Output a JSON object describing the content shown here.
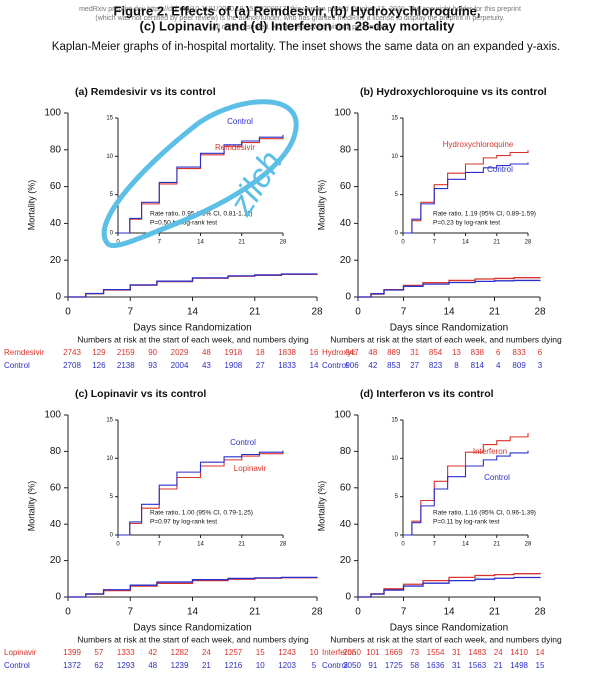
{
  "header": {
    "preprint_note": [
      "medRxiv preprint doi: https://doi.org/10.1101/2020.10.15.20209817; this version posted October 15, 2020. The copyright holder for this preprint",
      "(which was not certified by peer review) is the author/funder, who has granted medRxiv a license to display the preprint in perpetuity.",
      "All rights reserved. No reuse allowed without permission."
    ],
    "title": [
      "Figure 2. Effects of (a) Remdesivir, (b) Hydroxychloroquine,",
      "(c) Lopinavir, and (d) Interferon on 28-day mortality"
    ],
    "subtitle": "Kaplan-Meier graphs of in-hospital mortality. The inset shows the same data on an expanded y-axis."
  },
  "annotation": "zilch",
  "chart_data": [
    {
      "type": "line",
      "step": true,
      "title": "(a) Remdesivir vs its control",
      "xlabel": "Days since Randomization",
      "ylabel": "Mortality (%)",
      "x": [
        0,
        2,
        4,
        7,
        10,
        14,
        18,
        21,
        24,
        28
      ],
      "xlim": [
        0,
        28
      ],
      "xticks": [
        0,
        7,
        14,
        21,
        28
      ],
      "ylim": [
        0,
        100
      ],
      "yticks": [
        0,
        20,
        40,
        60,
        80,
        100
      ],
      "series": [
        {
          "name": "Remdesivir",
          "color": "#d9342b",
          "values": [
            0,
            1.8,
            3.8,
            6.4,
            8.4,
            10.2,
            11.3,
            11.8,
            12.3,
            12.6
          ]
        },
        {
          "name": "Control",
          "color": "#2b2fc9",
          "values": [
            0,
            1.9,
            4.0,
            6.6,
            8.6,
            10.4,
            11.5,
            12.0,
            12.5,
            12.8
          ]
        }
      ],
      "inset": {
        "ylim": [
          0,
          15
        ],
        "yticks": [
          0,
          5,
          10,
          15
        ],
        "xticks": [
          0,
          7,
          14,
          21,
          28
        ],
        "note": [
          "Rate ratio, 0.95 (95% CI, 0.81-1.11)",
          "P=0.50 by log-rank test"
        ]
      },
      "risk_table": {
        "title": "Numbers at risk at the start of each week, and numbers dying",
        "rows": [
          {
            "label": "Remdesivir",
            "values": [
              2743,
              129,
              2159,
              90,
              2029,
              48,
              1918,
              18,
              1838,
              16
            ]
          },
          {
            "label": "Control",
            "values": [
              2708,
              126,
              2138,
              93,
              2004,
              43,
              1908,
              27,
              1833,
              14
            ]
          }
        ]
      }
    },
    {
      "type": "line",
      "step": true,
      "title": "(b) Hydroxychloroquine vs its control",
      "xlabel": "Days since Randomization",
      "ylabel": "Mortality (%)",
      "x": [
        0,
        2,
        4,
        7,
        10,
        14,
        18,
        21,
        24,
        28
      ],
      "xlim": [
        0,
        28
      ],
      "xticks": [
        0,
        7,
        14,
        21,
        28
      ],
      "ylim": [
        0,
        100
      ],
      "yticks": [
        0,
        20,
        40,
        60,
        80,
        100
      ],
      "series": [
        {
          "name": "Hydroxychloroquine",
          "color": "#d9342b",
          "values": [
            0,
            1.6,
            4.0,
            6.3,
            7.8,
            9.0,
            9.8,
            10.1,
            10.5,
            10.8
          ]
        },
        {
          "name": "Control",
          "color": "#2b2fc9",
          "values": [
            0,
            1.8,
            3.8,
            5.8,
            7.0,
            7.9,
            8.5,
            8.8,
            9.0,
            9.2
          ]
        }
      ],
      "inset": {
        "ylim": [
          0,
          15
        ],
        "yticks": [
          0,
          5,
          10,
          15
        ],
        "xticks": [
          0,
          7,
          14,
          21,
          28
        ],
        "note": [
          "Rate ratio, 1.19 (95% CI, 0.89-1.59)",
          "P=0.23 by log-rank test"
        ]
      },
      "risk_table": {
        "title": "Numbers at risk at the start of each week, and numbers dying",
        "rows": [
          {
            "label": "Hydroxyc.",
            "values": [
              947,
              48,
              889,
              31,
              854,
              13,
              838,
              6,
              833,
              6
            ]
          },
          {
            "label": "Control",
            "values": [
              906,
              42,
              853,
              27,
              823,
              8,
              814,
              4,
              809,
              3
            ]
          }
        ]
      }
    },
    {
      "type": "line",
      "step": true,
      "title": "(c) Lopinavir vs its control",
      "xlabel": "Days since Randomization",
      "ylabel": "Mortality (%)",
      "x": [
        0,
        2,
        4,
        7,
        10,
        14,
        18,
        21,
        24,
        28
      ],
      "xlim": [
        0,
        28
      ],
      "xticks": [
        0,
        7,
        14,
        21,
        28
      ],
      "ylim": [
        0,
        100
      ],
      "yticks": [
        0,
        20,
        40,
        60,
        80,
        100
      ],
      "series": [
        {
          "name": "Lopinavir",
          "color": "#d9342b",
          "values": [
            0,
            1.5,
            3.5,
            6.0,
            7.5,
            9.0,
            9.8,
            10.3,
            10.6,
            10.8
          ]
        },
        {
          "name": "Control",
          "color": "#2b2fc9",
          "values": [
            0,
            1.7,
            4.0,
            6.5,
            8.2,
            9.5,
            10.2,
            10.5,
            10.8,
            11.0
          ]
        }
      ],
      "inset": {
        "ylim": [
          0,
          15
        ],
        "yticks": [
          0,
          5,
          10,
          15
        ],
        "xticks": [
          0,
          7,
          14,
          21,
          28
        ],
        "note": [
          "Rate ratio, 1.00 (95% CI, 0.79-1.25)",
          "P=0.97 by log-rank test"
        ]
      },
      "risk_table": {
        "title": "Numbers at risk at the start of each week, and numbers dying",
        "rows": [
          {
            "label": "Lopinavir",
            "values": [
              1399,
              57,
              1333,
              42,
              1282,
              24,
              1257,
              15,
              1243,
              10
            ]
          },
          {
            "label": "Control",
            "values": [
              1372,
              62,
              1293,
              48,
              1239,
              21,
              1216,
              10,
              1203,
              5
            ]
          }
        ]
      }
    },
    {
      "type": "line",
      "step": true,
      "title": "(d) Interferon vs its control",
      "xlabel": "Days since Randomization",
      "ylabel": "Mortality (%)",
      "x": [
        0,
        2,
        4,
        7,
        10,
        14,
        18,
        21,
        24,
        28
      ],
      "xlim": [
        0,
        28
      ],
      "xticks": [
        0,
        7,
        14,
        21,
        28
      ],
      "ylim": [
        0,
        100
      ],
      "yticks": [
        0,
        20,
        40,
        60,
        80,
        100
      ],
      "series": [
        {
          "name": "Interferon",
          "color": "#d9342b",
          "values": [
            0,
            1.8,
            4.5,
            7.0,
            9.0,
            10.8,
            11.8,
            12.3,
            12.8,
            13.3
          ]
        },
        {
          "name": "Control",
          "color": "#2b2fc9",
          "values": [
            0,
            1.6,
            3.8,
            6.0,
            7.6,
            9.0,
            9.8,
            10.3,
            10.7,
            11.0
          ]
        }
      ],
      "inset": {
        "ylim": [
          0,
          15
        ],
        "yticks": [
          0,
          5,
          10,
          15
        ],
        "xticks": [
          0,
          7,
          14,
          21,
          28
        ],
        "note": [
          "Rate ratio, 1.16 (95% CI, 0.96-1.39)",
          "P=0.11 by log-rank test"
        ]
      },
      "risk_table": {
        "title": "Numbers at risk at the start of each week, and numbers dying",
        "rows": [
          {
            "label": "Interferon",
            "values": [
              2050,
              101,
              1669,
              73,
              1554,
              31,
              1483,
              24,
              1410,
              14
            ]
          },
          {
            "label": "Control",
            "values": [
              2050,
              91,
              1725,
              58,
              1636,
              31,
              1563,
              21,
              1498,
              15
            ]
          }
        ]
      }
    }
  ]
}
